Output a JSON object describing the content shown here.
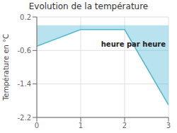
{
  "chart_data": {
    "type": "area",
    "title": "Evolution de la température",
    "ylabel": "Température en °C",
    "x": [
      0,
      1,
      2,
      3
    ],
    "values": [
      -0.5,
      -0.1,
      -0.1,
      -1.9
    ],
    "color": "#4db8d4",
    "xlim": [
      0,
      3
    ],
    "xticks": [
      0,
      1,
      2,
      3
    ],
    "ylim": [
      -2.2,
      0.2
    ],
    "yticks": [
      0.2,
      -0.6,
      -1.4,
      -2.2
    ],
    "grid": true,
    "annotations": [
      {
        "text": "heure par heure",
        "x": 2.2,
        "y": -0.45
      }
    ]
  }
}
